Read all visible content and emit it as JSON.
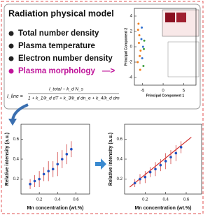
{
  "header": {
    "title": "Radiation physical model"
  },
  "bullets": [
    "Total number density",
    "Plasma temperature",
    "Electron number density",
    "Plasma morphology"
  ],
  "arrow": "—>",
  "equation": {
    "lhs": "I_line =",
    "numerator": "I_total − k_d N_s",
    "denominator": "1 + k_1/k_d dT + k_3/k_d dn_e + k_4/k_d dm"
  },
  "chart_data": [
    {
      "type": "scatter",
      "xlabel": "Principal Component 1",
      "ylabel": "Principal Component 2",
      "xlim": [
        -7,
        8
      ],
      "xticks": [
        -5,
        0,
        5
      ],
      "ylim": [
        -5,
        5
      ],
      "yticks": [
        -4,
        -2,
        0,
        2,
        4
      ],
      "series": [
        {
          "color": "#f08020",
          "x": [
            -6,
            -5.8,
            -5.5,
            -6.2,
            -5.9,
            -5.6,
            -6.1,
            -5.7
          ],
          "values": [
            3,
            1.5,
            -0.5,
            -2,
            0.5,
            -3,
            2.2,
            -1.2
          ]
        },
        {
          "color": "#3070d0",
          "x": [
            -5.3,
            -5.1,
            -4.9,
            -5.2
          ],
          "values": [
            1,
            -1.5,
            0,
            2.5
          ]
        },
        {
          "color": "#40a040",
          "x": [
            -4.8,
            -4.6,
            -4.7
          ],
          "values": [
            -2.5,
            0.8,
            -0.3
          ]
        }
      ]
    },
    {
      "type": "scatter",
      "xlabel": "Mn concentration (wt.%)",
      "ylabel": "Relative intensity (a.u.)",
      "xlim": [
        0,
        0.75
      ],
      "xticks": [
        0.2,
        0.4,
        0.6
      ],
      "ylim": [
        0.05,
        0.75
      ],
      "yticks": [
        0.2,
        0.4,
        0.6
      ],
      "series": [
        {
          "color": "#2050c0",
          "error_color": "#d04040",
          "x": [
            0.1,
            0.15,
            0.2,
            0.25,
            0.3,
            0.35,
            0.4,
            0.45,
            0.5,
            0.55
          ],
          "values": [
            0.15,
            0.18,
            0.2,
            0.25,
            0.28,
            0.3,
            0.35,
            0.4,
            0.45,
            0.5
          ],
          "errors": [
            0.05,
            0.06,
            0.08,
            0.07,
            0.1,
            0.08,
            0.12,
            0.09,
            0.1,
            0.08
          ]
        }
      ]
    },
    {
      "type": "scatter",
      "xlabel": "Mn concentration (wt.%)",
      "ylabel": "Relative intensity (a.u.)",
      "xlim": [
        0,
        0.75
      ],
      "xticks": [
        0.2,
        0.4,
        0.6
      ],
      "ylim": [
        0.05,
        0.75
      ],
      "yticks": [
        0.2,
        0.4,
        0.6
      ],
      "series": [
        {
          "type": "line",
          "color": "#d03030",
          "x": [
            0.05,
            0.65
          ],
          "values": [
            0.12,
            0.62
          ]
        },
        {
          "color": "#2050c0",
          "error_color": "#d04040",
          "x": [
            0.1,
            0.15,
            0.2,
            0.25,
            0.3,
            0.35,
            0.4,
            0.45,
            0.5,
            0.55
          ],
          "values": [
            0.16,
            0.2,
            0.22,
            0.27,
            0.3,
            0.34,
            0.38,
            0.42,
            0.46,
            0.52
          ],
          "errors": [
            0.04,
            0.05,
            0.06,
            0.05,
            0.07,
            0.06,
            0.08,
            0.07,
            0.08,
            0.06
          ]
        }
      ]
    }
  ]
}
